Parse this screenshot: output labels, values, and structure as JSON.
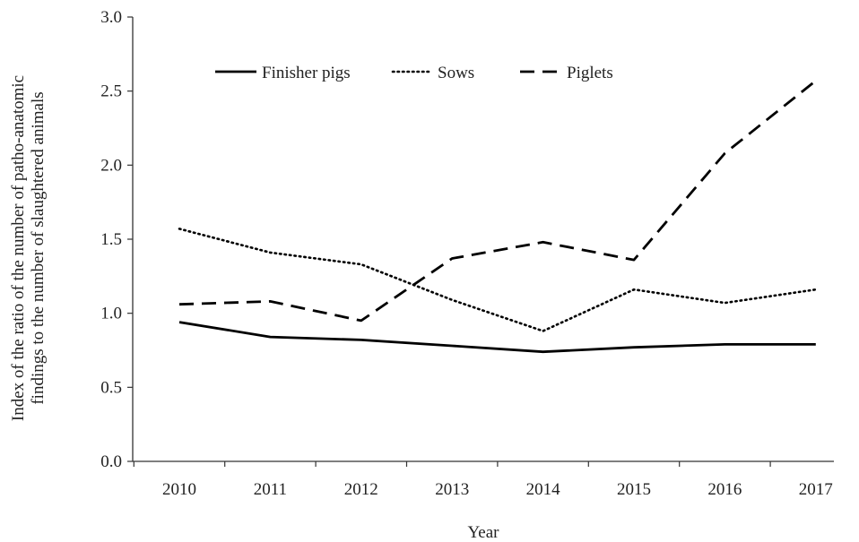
{
  "chart_data": {
    "type": "line",
    "title": "",
    "xlabel": "Year",
    "ylabel": [
      "Index of the ratio of the number of patho-anatomic",
      "findings to the number of slaughtered animals"
    ],
    "categories": [
      "2010",
      "2011",
      "2012",
      "2013",
      "2014",
      "2015",
      "2016",
      "2017"
    ],
    "ylim": [
      0,
      3.0
    ],
    "yticks": [
      "0.0",
      "0.5",
      "1.0",
      "1.5",
      "2.0",
      "2.5",
      "3.0"
    ],
    "grid": false,
    "legend_position": "top",
    "series": [
      {
        "name": "Finisher pigs",
        "style": "solid",
        "color": "#000000",
        "values": [
          0.94,
          0.84,
          0.82,
          0.78,
          0.74,
          0.77,
          0.79,
          0.79
        ]
      },
      {
        "name": "Sows",
        "style": "dotted",
        "color": "#000000",
        "values": [
          1.57,
          1.41,
          1.33,
          1.09,
          0.88,
          1.16,
          1.07,
          1.16
        ]
      },
      {
        "name": "Piglets",
        "style": "dashed",
        "color": "#000000",
        "values": [
          1.06,
          1.08,
          0.95,
          1.37,
          1.48,
          1.36,
          2.08,
          2.57
        ]
      }
    ]
  }
}
